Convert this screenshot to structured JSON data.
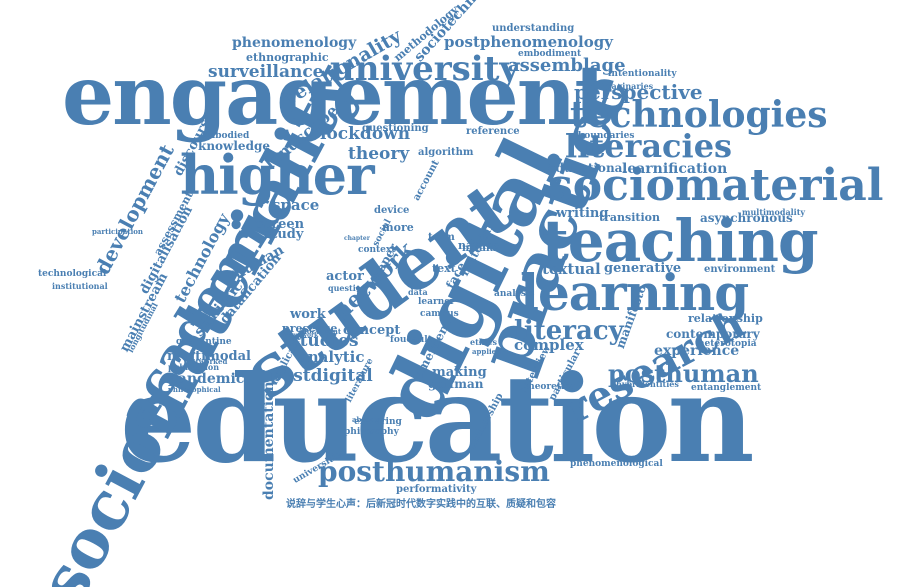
{
  "color": "#4a7fb2",
  "words": [
    {
      "text": "education"
    },
    {
      "text": "engagement"
    },
    {
      "text": "sociomateriality"
    },
    {
      "text": "student"
    },
    {
      "text": "digital"
    },
    {
      "text": "practice"
    },
    {
      "text": "teaching"
    },
    {
      "text": "learning"
    },
    {
      "text": "sociomaterial"
    },
    {
      "text": "higher"
    },
    {
      "text": "academic"
    },
    {
      "text": "university"
    },
    {
      "text": "technologies"
    },
    {
      "text": "literacies"
    },
    {
      "text": "research"
    },
    {
      "text": "posthumanism"
    },
    {
      "text": "posthuman"
    },
    {
      "text": "literacy"
    },
    {
      "text": "perspective"
    },
    {
      "text": "assemblage"
    },
    {
      "text": "postphenomenology"
    },
    {
      "text": "phenomenology"
    },
    {
      "text": "relationality"
    },
    {
      "text": "surveillance"
    },
    {
      "text": "ethnographic"
    },
    {
      "text": "methodology"
    },
    {
      "text": "sociotechnical"
    },
    {
      "text": "understanding"
    },
    {
      "text": "embodiment"
    },
    {
      "text": "intentionality"
    },
    {
      "text": "imaginaries"
    },
    {
      "text": "development"
    },
    {
      "text": "discourse"
    },
    {
      "text": "embodied"
    },
    {
      "text": "knowledge"
    },
    {
      "text": "landscape"
    },
    {
      "text": "lockdown"
    },
    {
      "text": "theory"
    },
    {
      "text": "questioning"
    },
    {
      "text": "reference"
    },
    {
      "text": "boundaries"
    },
    {
      "text": "network"
    },
    {
      "text": "educational"
    },
    {
      "text": "learnification"
    },
    {
      "text": "technology"
    },
    {
      "text": "digitalisation"
    },
    {
      "text": "assessment"
    },
    {
      "text": "mainstream"
    },
    {
      "text": "datafication"
    },
    {
      "text": "screen"
    },
    {
      "text": "space"
    },
    {
      "text": "study"
    },
    {
      "text": "human"
    },
    {
      "text": "actor"
    },
    {
      "text": "semiotic"
    },
    {
      "text": "work"
    },
    {
      "text": "presence"
    },
    {
      "text": "studies"
    },
    {
      "text": "analytic"
    },
    {
      "text": "concept"
    },
    {
      "text": "more"
    },
    {
      "text": "paper"
    },
    {
      "text": "term"
    },
    {
      "text": "nature"
    },
    {
      "text": "text"
    },
    {
      "text": "making"
    },
    {
      "text": "goffman"
    },
    {
      "text": "postdigital"
    },
    {
      "text": "pandemic"
    },
    {
      "text": "multimodal"
    },
    {
      "text": "quarantine"
    },
    {
      "text": "publication"
    },
    {
      "text": "philosophical"
    },
    {
      "text": "networked"
    },
    {
      "text": "implication"
    },
    {
      "text": "literature"
    },
    {
      "text": "documentation"
    },
    {
      "text": "universities"
    },
    {
      "text": "exploring"
    },
    {
      "text": "philosophy"
    },
    {
      "text": "authorship"
    },
    {
      "text": "complex"
    },
    {
      "text": "experience"
    },
    {
      "text": "textual"
    },
    {
      "text": "generative"
    },
    {
      "text": "environment"
    },
    {
      "text": "writing"
    },
    {
      "text": "transition"
    },
    {
      "text": "asynchronous"
    },
    {
      "text": "multimodality"
    },
    {
      "text": "relationship"
    },
    {
      "text": "contemporary"
    },
    {
      "text": "heterotopia"
    },
    {
      "text": "manifesto"
    },
    {
      "text": "hybridentities"
    },
    {
      "text": "entanglement"
    },
    {
      "text": "theoretical"
    },
    {
      "text": "particular"
    },
    {
      "text": "interview"
    },
    {
      "text": "performativity"
    },
    {
      "text": "phenomenological"
    },
    {
      "text": "technological"
    },
    {
      "text": "institutional"
    },
    {
      "text": "participation"
    },
    {
      "text": "longitudinal"
    },
    {
      "text": "emergent"
    },
    {
      "text": "material"
    },
    {
      "text": "learner"
    },
    {
      "text": "context"
    },
    {
      "text": "social"
    },
    {
      "text": "account"
    },
    {
      "text": "face"
    },
    {
      "text": "device"
    },
    {
      "text": "media"
    },
    {
      "text": "analysis"
    },
    {
      "text": "question"
    },
    {
      "text": "document"
    },
    {
      "text": "framework"
    },
    {
      "text": "algorithm"
    },
    {
      "text": "campus"
    },
    {
      "text": "foucault"
    },
    {
      "text": "chapter"
    },
    {
      "text": "data"
    },
    {
      "text": "ethics"
    },
    {
      "text": "absence"
    },
    {
      "text": "applied"
    }
  ],
  "chinese_line": "说辞与学生心声：后新冠时代数字实践中的互联、质疑和包容"
}
